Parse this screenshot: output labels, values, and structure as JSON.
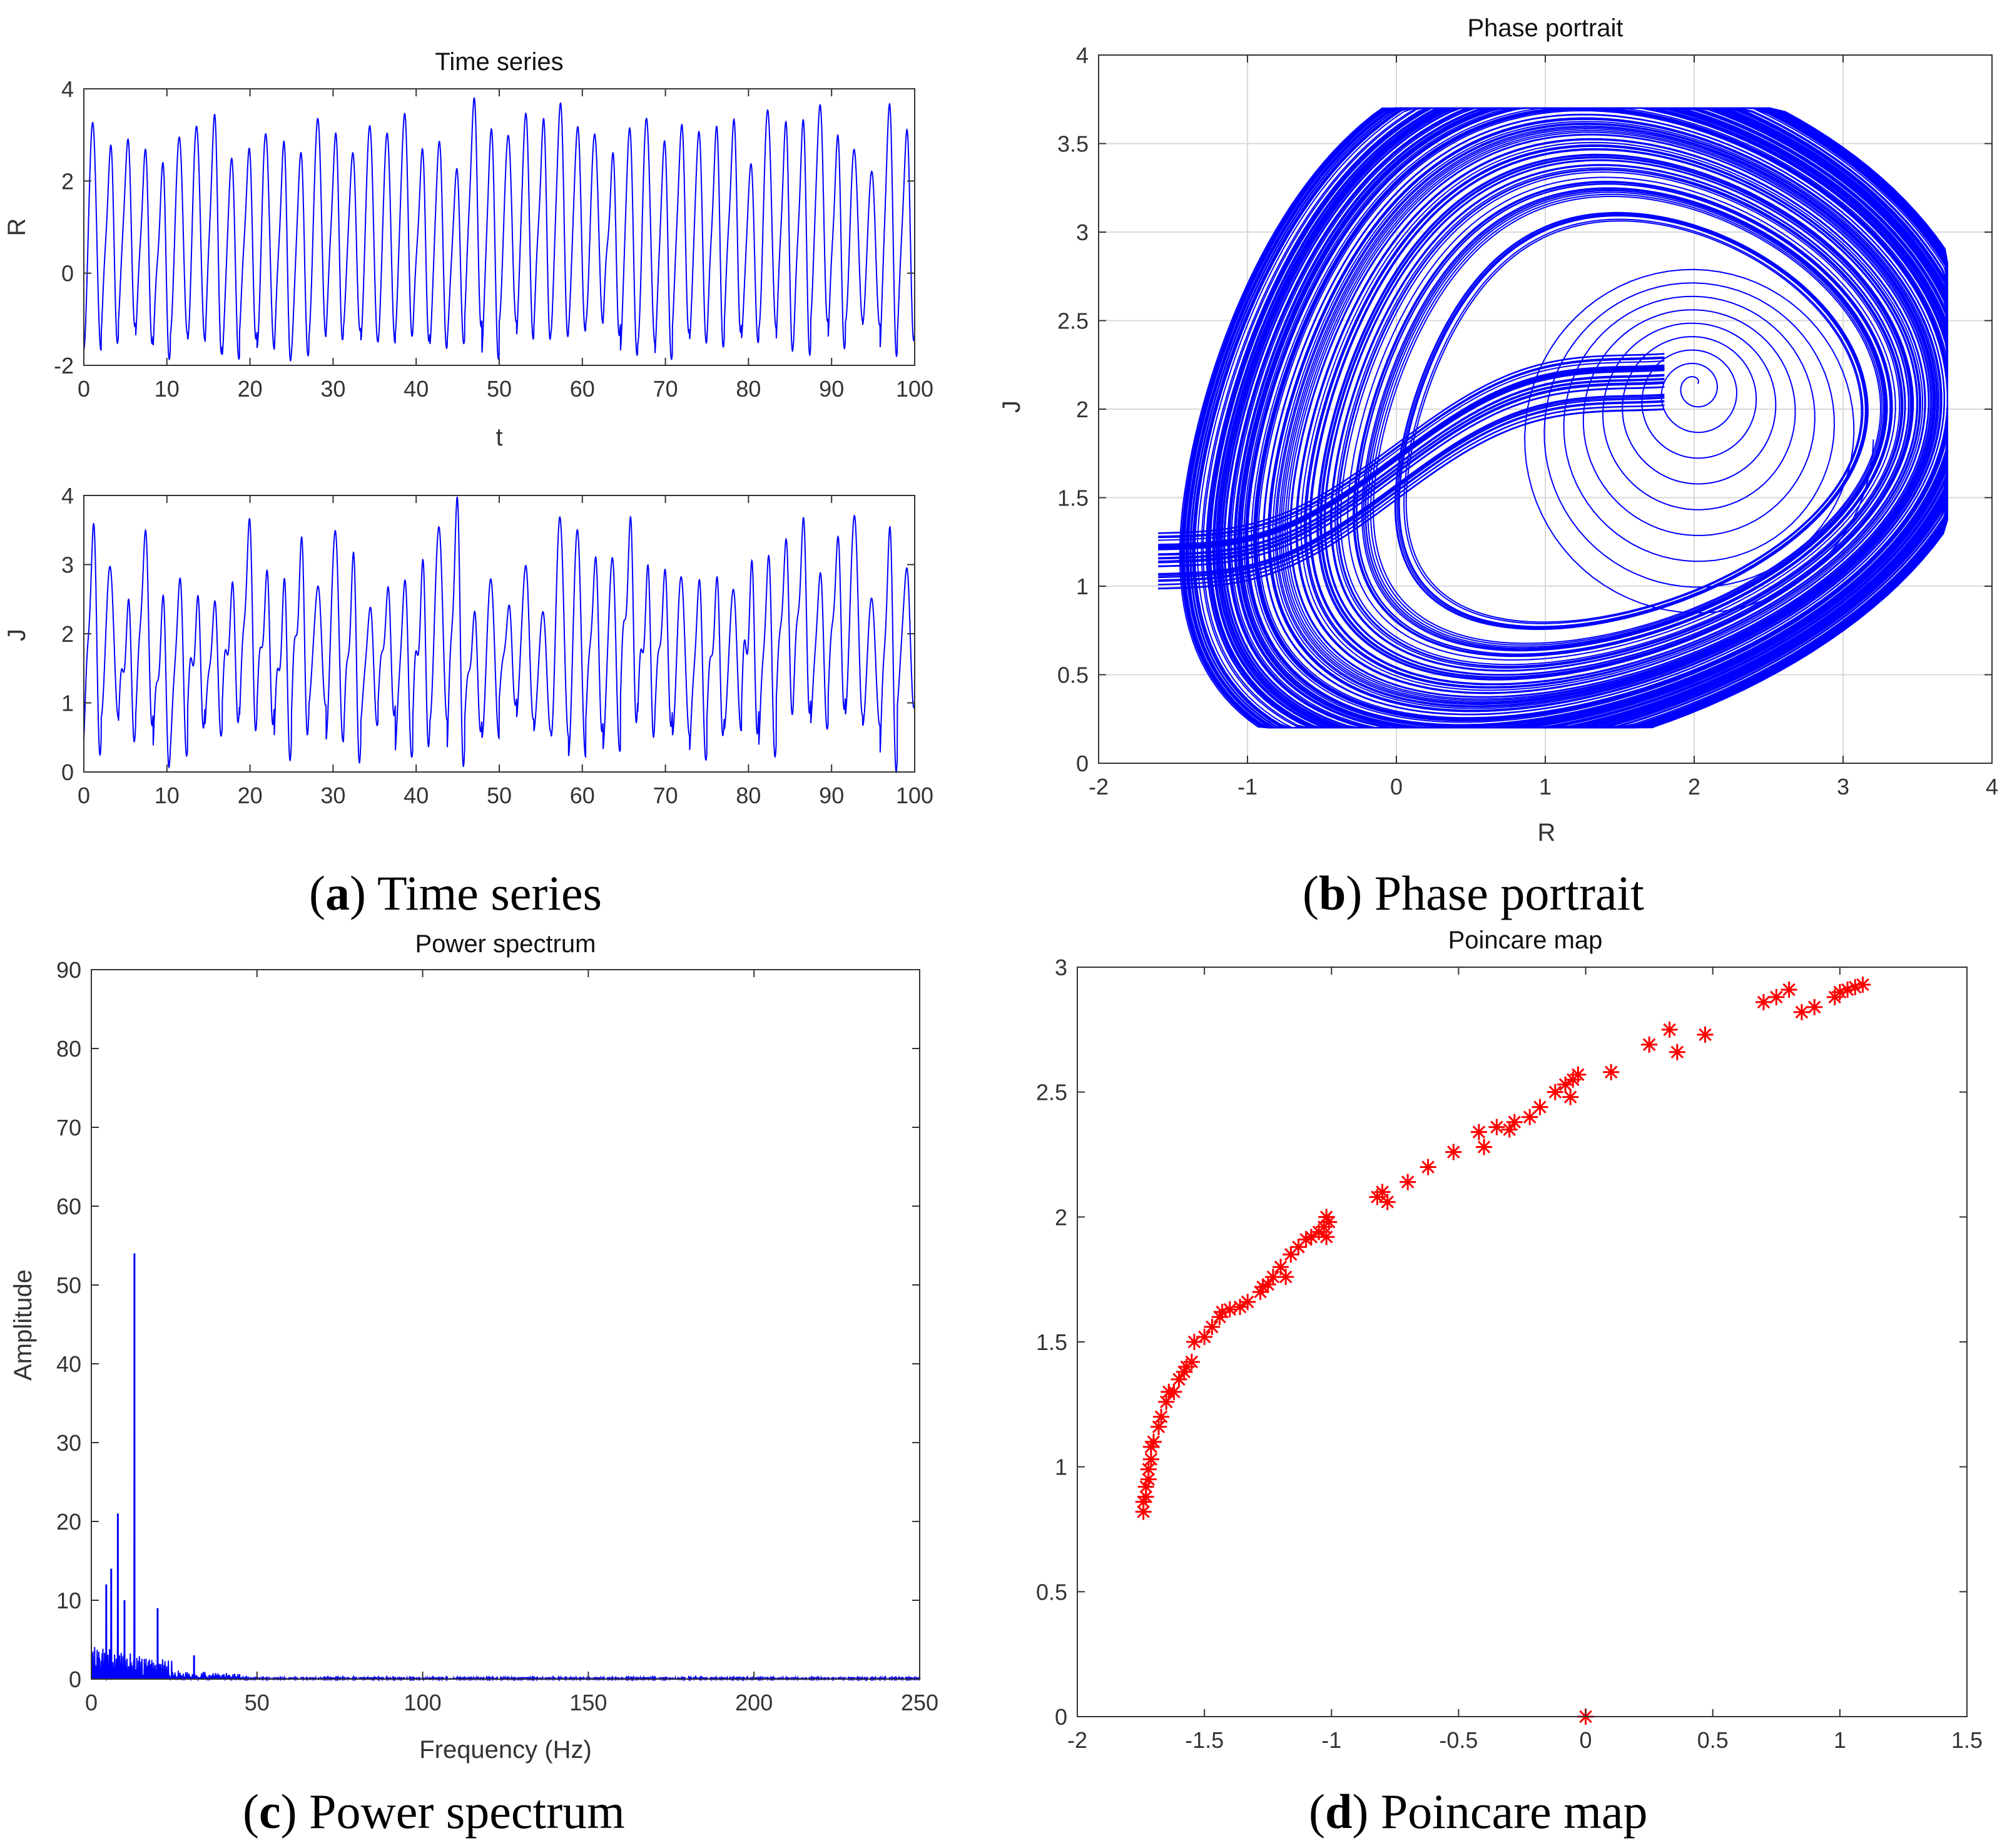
{
  "colors": {
    "series": "#0000ff",
    "marker": "#ff0000",
    "axis": "#333333",
    "grid": "#d9d9d9"
  },
  "chart_data": [
    {
      "id": "time-series-R",
      "type": "line",
      "title": "Time series",
      "xlabel": "t",
      "ylabel": "R",
      "xlim": [
        0,
        100
      ],
      "ylim": [
        -2,
        4
      ],
      "xticks": [
        "0",
        "10",
        "20",
        "30",
        "40",
        "50",
        "60",
        "70",
        "80",
        "90",
        "100"
      ],
      "yticks": [
        "-2",
        "0",
        "2",
        "4"
      ],
      "grid": false,
      "series": [
        {
          "name": "R(t)",
          "description": "chaotic oscillation, about 48 oscillations over t=0..100, values ranging roughly -1.8 to 3.7"
        }
      ]
    },
    {
      "id": "time-series-J",
      "type": "line",
      "title": "",
      "xlabel": "",
      "ylabel": "J",
      "xlim": [
        0,
        100
      ],
      "ylim": [
        0,
        4
      ],
      "xticks": [
        "0",
        "10",
        "20",
        "30",
        "40",
        "50",
        "60",
        "70",
        "80",
        "90",
        "100"
      ],
      "yticks": [
        "0",
        "1",
        "2",
        "3",
        "4"
      ],
      "grid": false,
      "series": [
        {
          "name": "J(t)",
          "description": "chaotic oscillation, values ranging roughly 0.2 to 3.7"
        }
      ]
    },
    {
      "id": "phase-portrait",
      "type": "line",
      "title": "Phase portrait",
      "xlabel": "R",
      "ylabel": "J",
      "xlim": [
        -2,
        4
      ],
      "ylim": [
        0,
        4
      ],
      "xticks": [
        "-2",
        "-1",
        "0",
        "1",
        "2",
        "3",
        "4"
      ],
      "yticks": [
        "0",
        "0.5",
        "1",
        "1.5",
        "2",
        "2.5",
        "3",
        "3.5",
        "4"
      ],
      "grid": true,
      "series": [
        {
          "name": "trajectory",
          "description": "chaotic attractor, R from -1.75 to 3.7, J from 0.2 to 3.7, spiral focus near (2.0, 2.15)"
        }
      ]
    },
    {
      "id": "power-spectrum",
      "type": "line",
      "title": "Power spectrum",
      "xlabel": "Frequency (Hz)",
      "ylabel": "Amplitude",
      "xlim": [
        0,
        250
      ],
      "ylim": [
        0,
        90
      ],
      "xticks": [
        "0",
        "50",
        "100",
        "150",
        "200",
        "250"
      ],
      "yticks": [
        "0",
        "10",
        "20",
        "30",
        "40",
        "50",
        "60",
        "70",
        "80",
        "90"
      ],
      "grid": false,
      "peaks": [
        {
          "x": 4.5,
          "y": 12
        },
        {
          "x": 6,
          "y": 14
        },
        {
          "x": 8,
          "y": 21
        },
        {
          "x": 10,
          "y": 10
        },
        {
          "x": 13,
          "y": 54
        },
        {
          "x": 20,
          "y": 9
        },
        {
          "x": 31,
          "y": 3
        }
      ]
    },
    {
      "id": "poincare-map",
      "type": "scatter",
      "title": "Poincare map",
      "xlabel": "",
      "ylabel": "",
      "xlim": [
        -2,
        1.5
      ],
      "ylim": [
        0,
        3
      ],
      "xticks": [
        "-2",
        "-1.5",
        "-1",
        "-0.5",
        "0",
        "0.5",
        "1",
        "1.5"
      ],
      "yticks": [
        "0",
        "0.5",
        "1",
        "1.5",
        "2",
        "2.5",
        "3"
      ],
      "grid": false,
      "points": [
        [
          -1.74,
          0.82
        ],
        [
          -1.74,
          0.86
        ],
        [
          -1.73,
          0.88
        ],
        [
          -1.73,
          0.92
        ],
        [
          -1.72,
          0.95
        ],
        [
          -1.72,
          0.99
        ],
        [
          -1.71,
          1.03
        ],
        [
          -1.71,
          1.08
        ],
        [
          -1.7,
          1.1
        ],
        [
          -1.68,
          1.16
        ],
        [
          -1.67,
          1.2
        ],
        [
          -1.65,
          1.26
        ],
        [
          -1.64,
          1.3
        ],
        [
          -1.62,
          1.3
        ],
        [
          -1.6,
          1.35
        ],
        [
          -1.58,
          1.38
        ],
        [
          -1.57,
          1.4
        ],
        [
          -1.55,
          1.42
        ],
        [
          -1.54,
          1.5
        ],
        [
          -1.5,
          1.52
        ],
        [
          -1.47,
          1.56
        ],
        [
          -1.44,
          1.6
        ],
        [
          -1.43,
          1.62
        ],
        [
          -1.4,
          1.63
        ],
        [
          -1.36,
          1.64
        ],
        [
          -1.33,
          1.66
        ],
        [
          -1.28,
          1.7
        ],
        [
          -1.27,
          1.72
        ],
        [
          -1.25,
          1.73
        ],
        [
          -1.23,
          1.76
        ],
        [
          -1.2,
          1.8
        ],
        [
          -1.18,
          1.76
        ],
        [
          -1.16,
          1.85
        ],
        [
          -1.13,
          1.88
        ],
        [
          -1.1,
          1.91
        ],
        [
          -1.08,
          1.92
        ],
        [
          -1.05,
          1.94
        ],
        [
          -1.03,
          1.96
        ],
        [
          -1.02,
          2.0
        ],
        [
          -1.02,
          1.92
        ],
        [
          -1.01,
          1.98
        ],
        [
          -0.82,
          2.08
        ],
        [
          -0.8,
          2.1
        ],
        [
          -0.78,
          2.06
        ],
        [
          -0.7,
          2.14
        ],
        [
          -0.62,
          2.2
        ],
        [
          -0.52,
          2.26
        ],
        [
          -0.42,
          2.34
        ],
        [
          -0.4,
          2.28
        ],
        [
          -0.35,
          2.36
        ],
        [
          -0.3,
          2.35
        ],
        [
          -0.28,
          2.38
        ],
        [
          -0.22,
          2.4
        ],
        [
          -0.18,
          2.44
        ],
        [
          -0.12,
          2.5
        ],
        [
          -0.08,
          2.53
        ],
        [
          -0.06,
          2.48
        ],
        [
          -0.05,
          2.55
        ],
        [
          -0.03,
          2.57
        ],
        [
          0.1,
          2.58
        ],
        [
          0.25,
          2.69
        ],
        [
          0.33,
          2.75
        ],
        [
          0.36,
          2.66
        ],
        [
          0.47,
          2.73
        ],
        [
          0.7,
          2.86
        ],
        [
          0.75,
          2.88
        ],
        [
          0.8,
          2.91
        ],
        [
          0.85,
          2.82
        ],
        [
          0.9,
          2.84
        ],
        [
          0.98,
          2.88
        ],
        [
          1.0,
          2.9
        ],
        [
          1.03,
          2.91
        ],
        [
          1.06,
          2.92
        ],
        [
          1.09,
          2.93
        ],
        [
          0,
          0
        ]
      ]
    }
  ],
  "captions": [
    {
      "letter": "a",
      "text": " Time series"
    },
    {
      "letter": "b",
      "text": " Phase portrait"
    },
    {
      "letter": "c",
      "text": " Power spectrum"
    },
    {
      "letter": "d",
      "text": " Poincare map"
    }
  ]
}
